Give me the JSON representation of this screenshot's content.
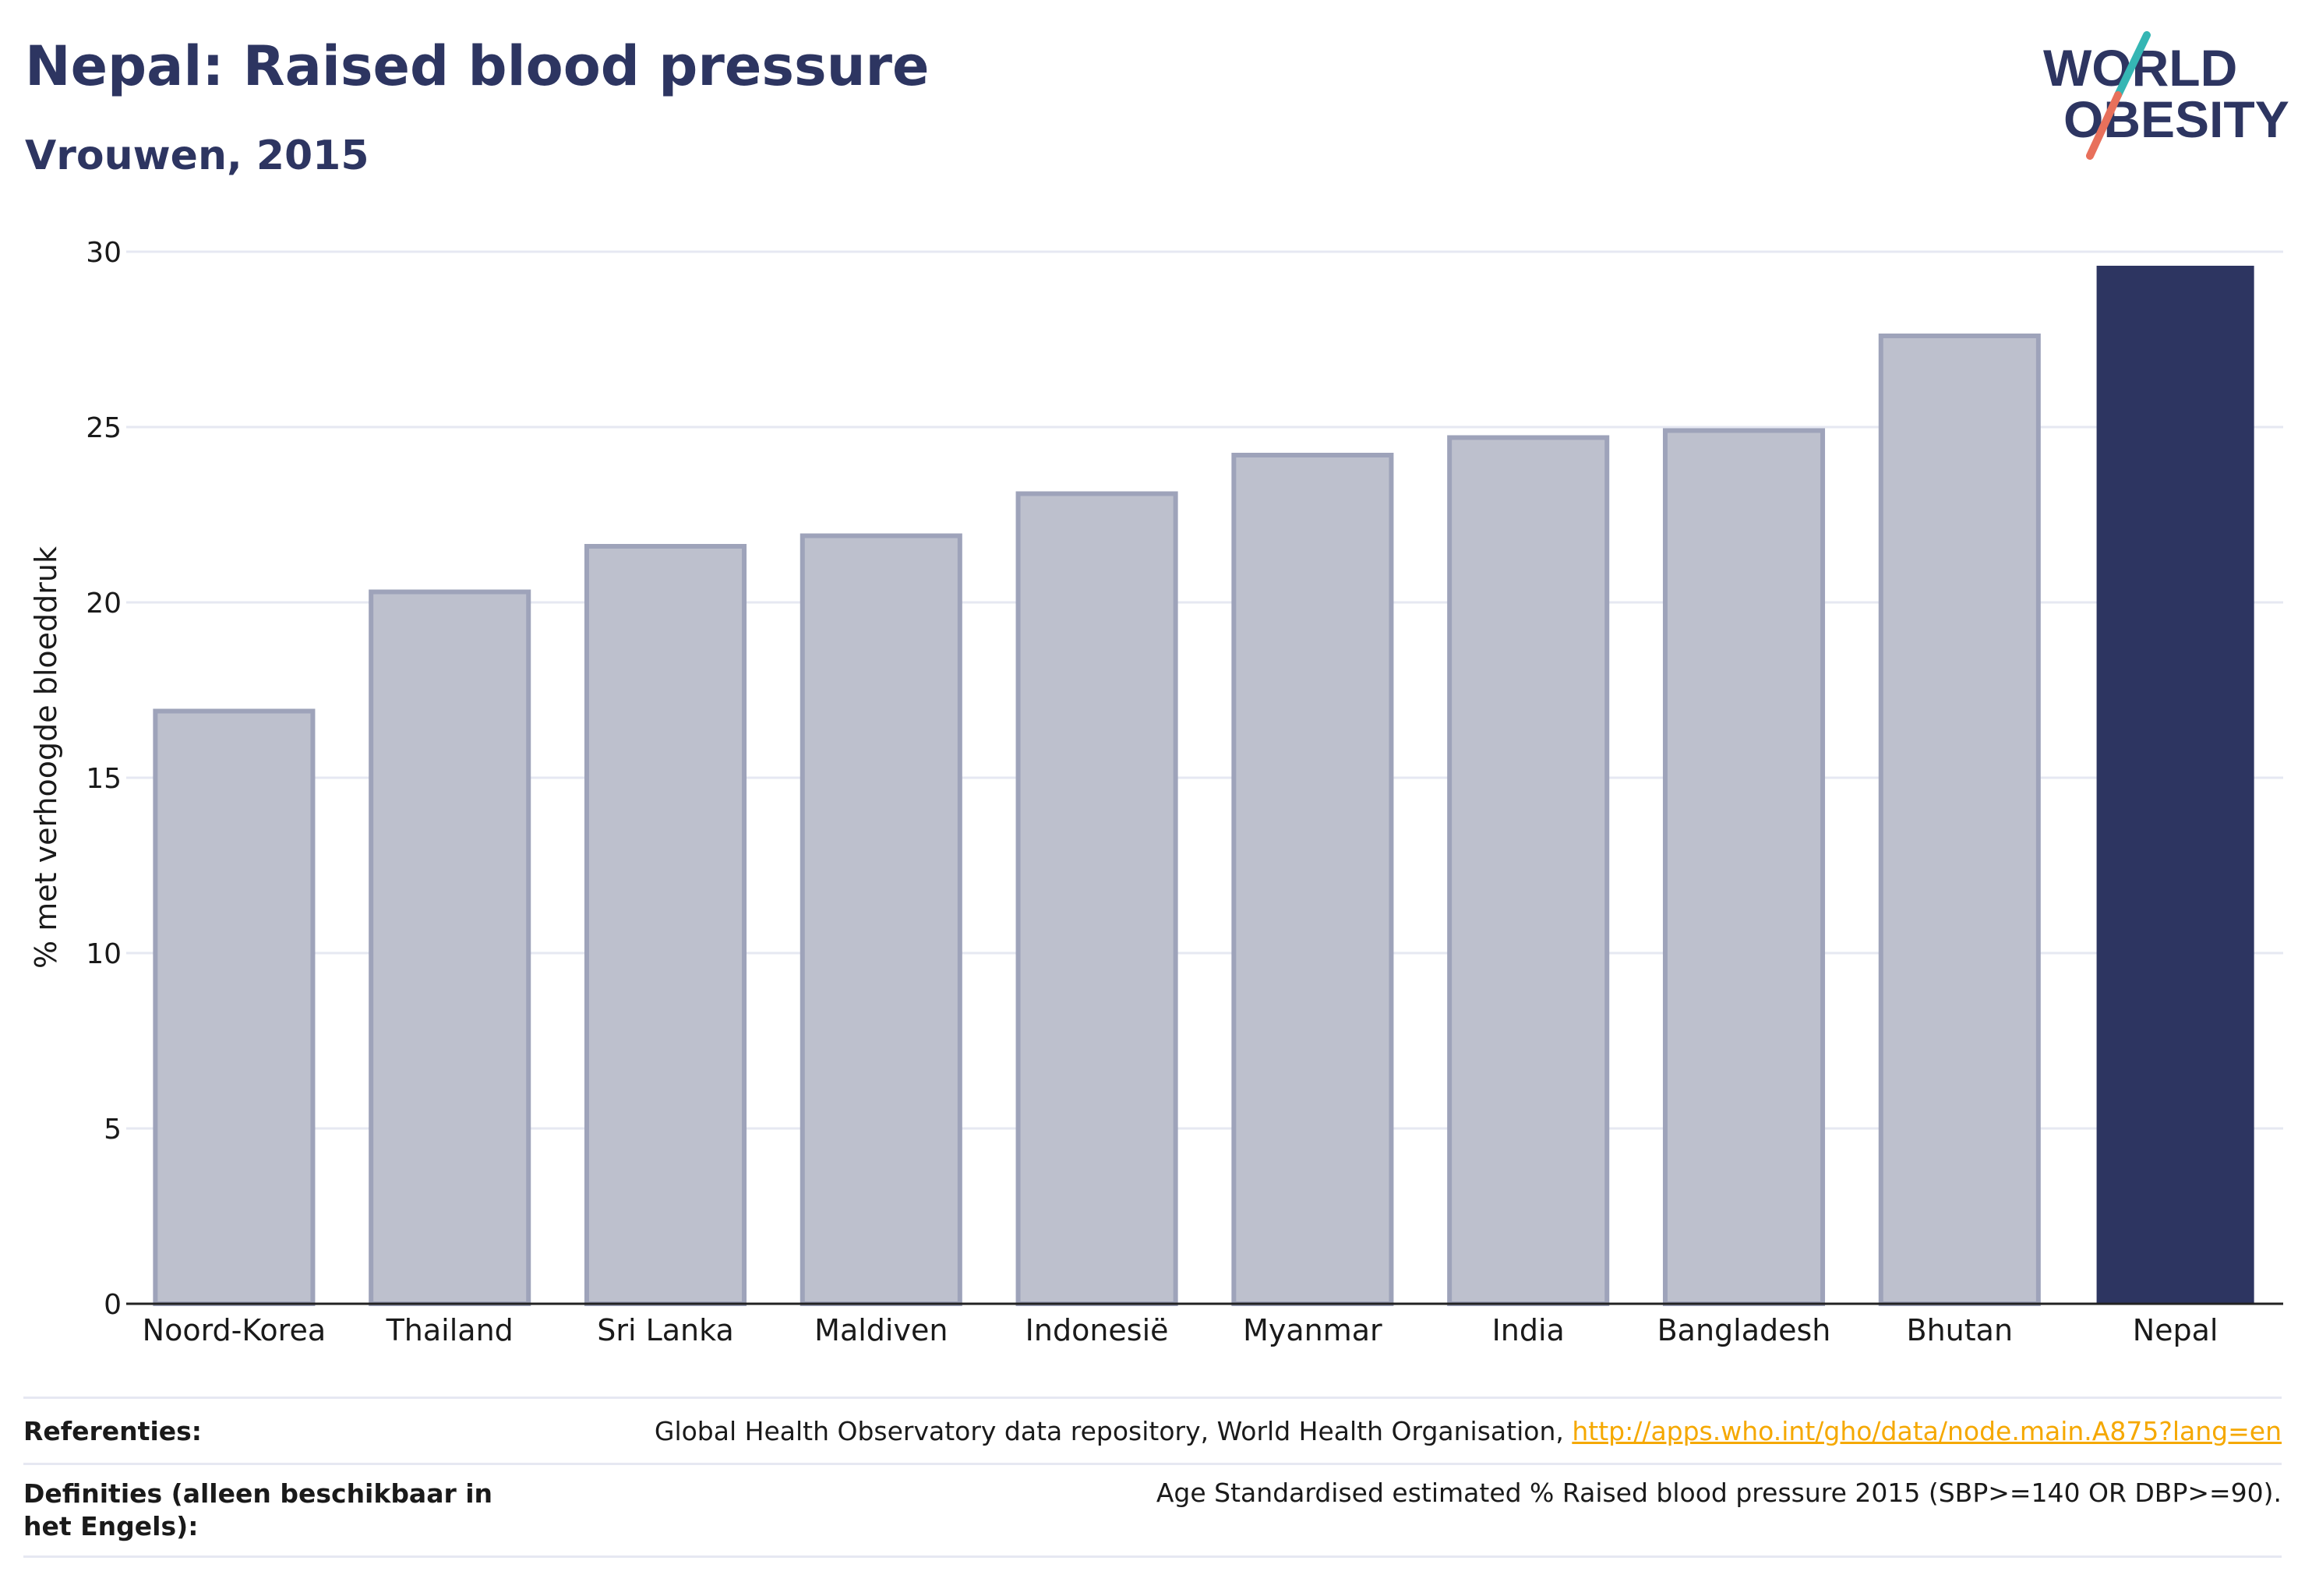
{
  "header": {
    "title": "Nepal: Raised blood pressure",
    "subtitle": "Vrouwen, 2015"
  },
  "logo": {
    "line1": "WORLD",
    "line2": "OBESITY"
  },
  "chart_data": {
    "type": "bar",
    "categories": [
      "Noord-Korea",
      "Thailand",
      "Sri Lanka",
      "Maldiven",
      "Indonesië",
      "Myanmar",
      "India",
      "Bangladesh",
      "Bhutan",
      "Nepal"
    ],
    "values": [
      16.9,
      20.3,
      21.6,
      21.9,
      23.1,
      24.2,
      24.7,
      24.9,
      27.6,
      29.6
    ],
    "highlight": "Nepal",
    "ylabel": "% met verhoogde bloeddruk",
    "ylim": [
      0,
      30
    ],
    "yticks": [
      0,
      5,
      10,
      15,
      20,
      25,
      30
    ],
    "grid": true,
    "colors": {
      "bar": "#bdc0cd",
      "bar_edge": "#9ea3ba",
      "highlight": "#2d3561"
    }
  },
  "footer": {
    "references_label": "Referenties:",
    "references_text": "Global Health Observatory data repository, World Health Organisation, ",
    "references_link": "http://apps.who.int/gho/data/node.main.A875?lang=en",
    "definitions_label": "Definities (alleen beschikbaar in het Engels):",
    "definitions_text": "Age Standardised estimated % Raised blood pressure 2015 (SBP>=140 OR DBP>=90)."
  }
}
